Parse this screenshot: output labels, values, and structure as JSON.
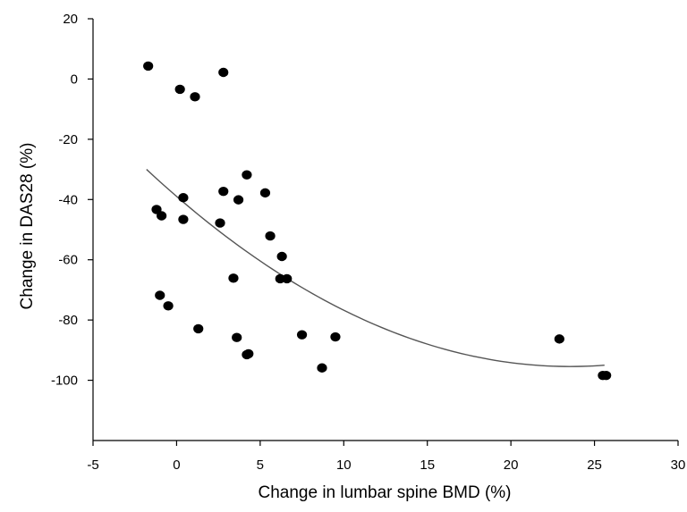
{
  "chart_data": {
    "type": "scatter",
    "title": "",
    "xlabel": "Change in lumbar spine BMD (%)",
    "ylabel": "Change in DAS28 (%)",
    "xlim": [
      -5,
      30
    ],
    "ylim": [
      -120,
      20
    ],
    "xticks": [
      -5,
      0,
      5,
      10,
      15,
      20,
      25,
      30
    ],
    "yticks": [
      20,
      0,
      -20,
      -40,
      -60,
      -80,
      -100
    ],
    "grid": false,
    "legend": "none",
    "point_color": "#000000",
    "fit_line_color": "#555555",
    "points": [
      {
        "x": -1.7,
        "y": 4.3
      },
      {
        "x": 0.2,
        "y": -3.4
      },
      {
        "x": 1.1,
        "y": -5.9
      },
      {
        "x": 2.8,
        "y": 2.2
      },
      {
        "x": -1.2,
        "y": -43.3
      },
      {
        "x": -0.9,
        "y": -45.4
      },
      {
        "x": 0.4,
        "y": -39.4
      },
      {
        "x": 0.4,
        "y": -46.6
      },
      {
        "x": -1.0,
        "y": -71.8
      },
      {
        "x": -0.5,
        "y": -75.3
      },
      {
        "x": 1.3,
        "y": -82.9
      },
      {
        "x": 2.6,
        "y": -47.8
      },
      {
        "x": 2.8,
        "y": -37.3
      },
      {
        "x": 3.4,
        "y": -66.1
      },
      {
        "x": 3.6,
        "y": -85.8
      },
      {
        "x": 3.7,
        "y": -40.1
      },
      {
        "x": 4.2,
        "y": -31.8
      },
      {
        "x": 4.2,
        "y": -91.5
      },
      {
        "x": 4.3,
        "y": -91.2
      },
      {
        "x": 5.3,
        "y": -37.8
      },
      {
        "x": 5.6,
        "y": -52.1
      },
      {
        "x": 6.2,
        "y": -66.3
      },
      {
        "x": 6.3,
        "y": -58.9
      },
      {
        "x": 6.6,
        "y": -66.3
      },
      {
        "x": 7.5,
        "y": -84.9
      },
      {
        "x": 8.7,
        "y": -95.9
      },
      {
        "x": 9.5,
        "y": -85.6
      },
      {
        "x": 22.9,
        "y": -86.3
      },
      {
        "x": 25.5,
        "y": -98.4
      },
      {
        "x": 25.7,
        "y": -98.4
      }
    ],
    "fit_curve": {
      "type": "quadratic",
      "x_range": [
        -1.8,
        25.6
      ],
      "samples": [
        {
          "x": -1.8,
          "y": -30.0
        },
        {
          "x": 4.0,
          "y": -55.0
        },
        {
          "x": 15.0,
          "y": -88.0
        },
        {
          "x": 25.6,
          "y": -95.0
        }
      ]
    }
  }
}
